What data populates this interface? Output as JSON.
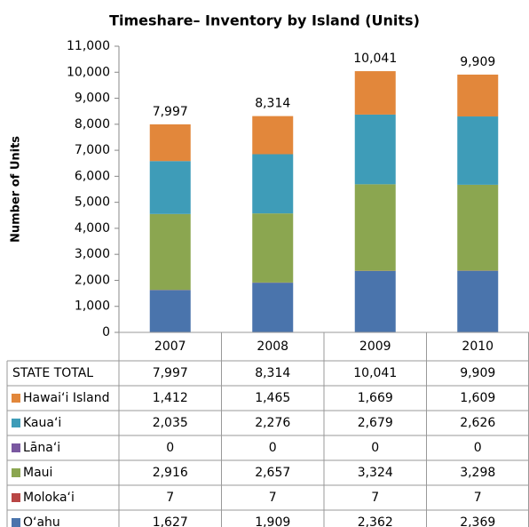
{
  "chart_data": {
    "type": "stacked_bar",
    "title": "Timeshare– Inventory by Island  (Units)",
    "y_label": "Number of Units",
    "categories": [
      "2007",
      "2008",
      "2009",
      "2010"
    ],
    "ylim": [
      0,
      11000
    ],
    "yticks": [
      0,
      {
        "value": 1000,
        "label": "1,000"
      },
      {
        "value": 2000,
        "label": "2,000"
      },
      {
        "value": 3000,
        "label": "3,000"
      },
      {
        "value": 4000,
        "label": "4,000"
      },
      {
        "value": 5000,
        "label": "5,000"
      },
      {
        "value": 6000,
        "label": "6,000"
      },
      {
        "value": 7000,
        "label": "7,000"
      },
      {
        "value": 8000,
        "label": "8,000"
      },
      {
        "value": 9000,
        "label": "9,000"
      },
      {
        "value": 10000,
        "label": "10,000"
      },
      {
        "value": 11000,
        "label": "11,000"
      }
    ],
    "totals": {
      "name": "STATE TOTAL",
      "values": [
        7997,
        8314,
        10041,
        9909
      ],
      "value_labels": [
        "7,997",
        "8,314",
        "10,041",
        "9,909"
      ]
    },
    "series": [
      {
        "name": "Hawai‘i Island",
        "color": "#e2873b",
        "values": [
          1412,
          1465,
          1669,
          1609
        ],
        "value_labels": [
          "1,412",
          "1,465",
          "1,669",
          "1,609"
        ]
      },
      {
        "name": "Kaua‘i",
        "color": "#3e9cb8",
        "values": [
          2035,
          2276,
          2679,
          2626
        ],
        "value_labels": [
          "2,035",
          "2,276",
          "2,679",
          "2,626"
        ]
      },
      {
        "name": "Lāna‘i",
        "color": "#7a58a0",
        "values": [
          0,
          0,
          0,
          0
        ],
        "value_labels": [
          "0",
          "0",
          "0",
          "0"
        ]
      },
      {
        "name": "Maui",
        "color": "#8ba650",
        "values": [
          2916,
          2657,
          3324,
          3298
        ],
        "value_labels": [
          "2,916",
          "2,657",
          "3,324",
          "3,298"
        ]
      },
      {
        "name": "Moloka‘i",
        "color": "#b94645",
        "values": [
          7,
          7,
          7,
          7
        ],
        "value_labels": [
          "7",
          "7",
          "7",
          "7"
        ]
      },
      {
        "name": "O‘ahu",
        "color": "#4a74ac",
        "values": [
          1627,
          1909,
          2362,
          2369
        ],
        "value_labels": [
          "1,627",
          "1,909",
          "2,362",
          "2,369"
        ]
      }
    ]
  }
}
